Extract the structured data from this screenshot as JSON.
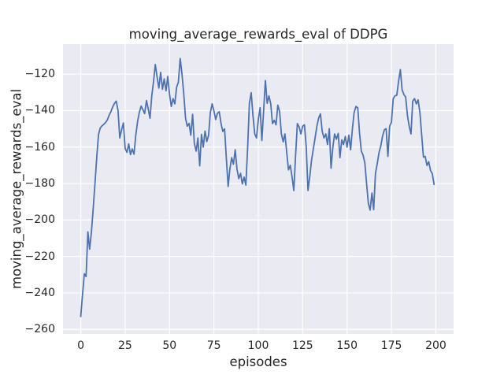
{
  "figure": {
    "title": "moving_average_rewards_eval of DDPG",
    "xlabel": "episodes",
    "ylabel": "moving_average_rewards_eval"
  },
  "chart_data": {
    "type": "line",
    "title": "moving_average_rewards_eval of DDPG",
    "xlabel": "episodes",
    "ylabel": "moving_average_rewards_eval",
    "grid": true,
    "legend": false,
    "xlim": [
      -10,
      210
    ],
    "ylim": [
      -262.5,
      -103.5
    ],
    "xticks": [
      0,
      25,
      50,
      75,
      100,
      125,
      150,
      175,
      200
    ],
    "yticks": [
      -120,
      -140,
      -160,
      -180,
      -200,
      -220,
      -240,
      -260
    ],
    "xtick_labels": [
      "0",
      "25",
      "50",
      "75",
      "100",
      "125",
      "150",
      "175",
      "200"
    ],
    "ytick_labels": [
      "−120",
      "−140",
      "−160",
      "−180",
      "−200",
      "−220",
      "−240",
      "−260"
    ],
    "style": {
      "figure_background": "#ffffff",
      "axes_background": "#eaeaf2",
      "grid_color": "#ffffff",
      "line_color": "#4c72b0",
      "text_color": "#262626"
    },
    "series": [
      {
        "name": "moving_average_rewards_eval",
        "color": "#4c72b0",
        "x_start": 0,
        "x_step": 1,
        "y": [
          -253.0,
          -241.0,
          -229.5,
          -231.0,
          -206.5,
          -216.0,
          -206.5,
          -194.0,
          -180.0,
          -166.0,
          -153.0,
          -149.5,
          -148.3,
          -147.5,
          -146.5,
          -145.0,
          -142.5,
          -140.5,
          -138.0,
          -136.0,
          -134.8,
          -140.0,
          -155.0,
          -150.5,
          -146.8,
          -160.7,
          -162.9,
          -158.3,
          -164.1,
          -161.0,
          -163.9,
          -153.5,
          -146.0,
          -141.0,
          -137.5,
          -139.5,
          -141.6,
          -134.5,
          -139.0,
          -144.2,
          -132.0,
          -124.0,
          -114.7,
          -121.5,
          -127.6,
          -119.0,
          -128.3,
          -122.6,
          -129.1,
          -121.2,
          -131.0,
          -137.7,
          -133.4,
          -136.3,
          -127.0,
          -124.5,
          -111.4,
          -120.0,
          -130.5,
          -144.2,
          -148.5,
          -147.0,
          -153.5,
          -142.0,
          -158.0,
          -162.2,
          -155.0,
          -170.3,
          -153.0,
          -160.0,
          -151.2,
          -157.0,
          -153.5,
          -141.0,
          -136.3,
          -140.0,
          -144.9,
          -141.5,
          -140.6,
          -147.1,
          -151.4,
          -150.0,
          -166.0,
          -181.6,
          -172.0,
          -165.8,
          -169.4,
          -161.5,
          -172.0,
          -177.3,
          -174.4,
          -180.2,
          -176.5,
          -180.9,
          -160.0,
          -136.0,
          -130.1,
          -142.7,
          -152.8,
          -155.0,
          -145.0,
          -138.4,
          -156.4,
          -140.0,
          -123.5,
          -136.0,
          -131.9,
          -136.3,
          -147.1,
          -145.3,
          -147.8,
          -137.0,
          -140.6,
          -152.8,
          -157.1,
          -152.8,
          -163.0,
          -172.5,
          -170.0,
          -176.2,
          -183.8,
          -165.0,
          -147.1,
          -149.0,
          -152.8,
          -148.5,
          -147.8,
          -160.0,
          -183.8,
          -176.0,
          -167.2,
          -161.0,
          -155.0,
          -148.5,
          -144.0,
          -141.8,
          -151.4,
          -155.0,
          -152.8,
          -158.6,
          -149.9,
          -171.6,
          -160.0,
          -152.8,
          -155.7,
          -152.5,
          -165.8,
          -156.0,
          -158.6,
          -154.2,
          -160.0,
          -153.5,
          -161.5,
          -150.0,
          -141.0,
          -137.7,
          -138.5,
          -152.0,
          -162.2,
          -164.3,
          -168.7,
          -180.0,
          -191.0,
          -194.6,
          -185.2,
          -194.3,
          -174.4,
          -169.0,
          -163.0,
          -159.3,
          -154.0,
          -150.5,
          -149.9,
          -165.1,
          -148.5,
          -146.3,
          -133.5,
          -131.9,
          -131.5,
          -124.0,
          -117.5,
          -128.5,
          -131.2,
          -132.5,
          -142.7,
          -148.5,
          -152.8,
          -134.8,
          -133.4,
          -136.3,
          -134.1,
          -141.0,
          -153.0,
          -165.5,
          -165.1,
          -170.1,
          -168.0,
          -172.9,
          -174.5,
          -180.5
        ]
      }
    ]
  }
}
